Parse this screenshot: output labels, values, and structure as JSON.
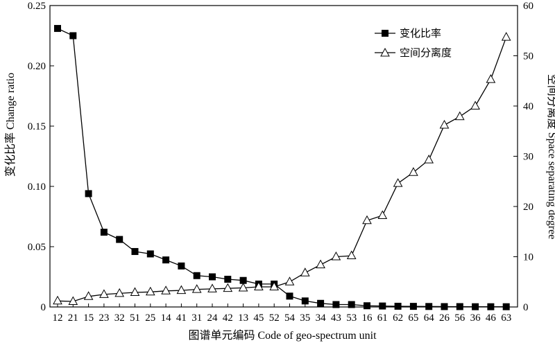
{
  "chart_data": {
    "type": "line",
    "categories": [
      "12",
      "21",
      "15",
      "23",
      "32",
      "51",
      "25",
      "14",
      "41",
      "31",
      "24",
      "42",
      "13",
      "45",
      "52",
      "54",
      "35",
      "34",
      "43",
      "53",
      "16",
      "61",
      "62",
      "65",
      "64",
      "26",
      "56",
      "36",
      "46",
      "63"
    ],
    "xlabel": "图谱单元编码 Code of geo-spectrum unit",
    "ylabel_left": "变化比率 Change ratio",
    "ylabel_right": "空间分离度 Space separating degree",
    "ylim_left": [
      0,
      0.25
    ],
    "ylim_right": [
      0,
      60
    ],
    "yticks_left": [
      "0",
      "0.05",
      "0.10",
      "0.15",
      "0.20",
      "0.25"
    ],
    "yticks_right": [
      "0",
      "10",
      "20",
      "30",
      "40",
      "50",
      "60"
    ],
    "grid": false,
    "legend_position": "top-right",
    "series": [
      {
        "name": "变化比率",
        "axis": "left",
        "marker": "filled-square",
        "values": [
          0.231,
          0.225,
          0.094,
          0.062,
          0.056,
          0.046,
          0.044,
          0.039,
          0.034,
          0.026,
          0.025,
          0.023,
          0.022,
          0.019,
          0.019,
          0.009,
          0.005,
          0.003,
          0.002,
          0.002,
          0.001,
          0.0008,
          0.0006,
          0.0005,
          0.0004,
          0.0003,
          0.0003,
          0.0002,
          0.0002,
          0.0002
        ]
      },
      {
        "name": "空间分离度",
        "axis": "right",
        "marker": "hollow-triangle",
        "values": [
          1.2,
          1.1,
          2.1,
          2.5,
          2.7,
          2.9,
          3.0,
          3.2,
          3.3,
          3.5,
          3.6,
          3.7,
          3.8,
          4.0,
          4.0,
          5.0,
          6.8,
          8.4,
          10.0,
          10.2,
          17.2,
          18.2,
          24.6,
          26.8,
          29.3,
          36.2,
          37.9,
          40.0,
          45.3,
          53.7
        ]
      }
    ]
  }
}
